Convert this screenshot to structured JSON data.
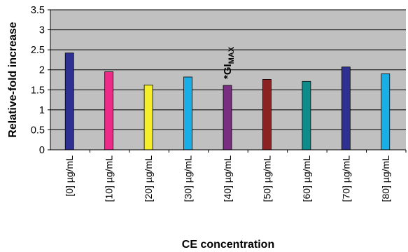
{
  "chart_data": {
    "type": "bar",
    "title": "",
    "xlabel": "CE concentration",
    "ylabel": "Relative-fold increase",
    "ylim": [
      0,
      3.5
    ],
    "yticks": [
      "0",
      "0.5",
      "1",
      "1.5",
      "2",
      "2.5",
      "3",
      "3.5"
    ],
    "grid": true,
    "legend": "none",
    "plot_background": "#c0c0c0",
    "categories": [
      "[0] µg/mL",
      "[10] µg/mL",
      "[20] µg/mL",
      "[30] µg/mL",
      "[40] µg/mL",
      "[50] µg/mL",
      "[60] µg/mL",
      "[70] µg/mL",
      "[80] µg/mL"
    ],
    "values": [
      2.42,
      1.95,
      1.62,
      1.82,
      1.61,
      1.76,
      1.71,
      2.07,
      1.9
    ],
    "bar_colors": [
      "#2e3192",
      "#ec2a8a",
      "#f5ee2a",
      "#1aaee6",
      "#7a2e82",
      "#8b2323",
      "#0e8c8c",
      "#2e3192",
      "#1aaee6"
    ],
    "annotation": {
      "text": "*GI",
      "subscript": "MAX",
      "category": "[40] µg/mL"
    }
  }
}
